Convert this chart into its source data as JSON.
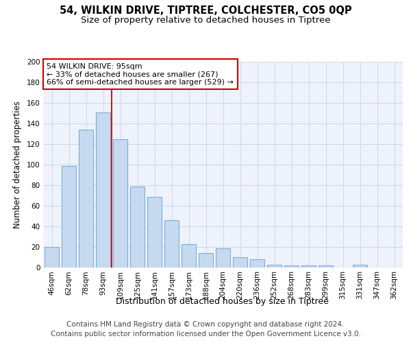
{
  "title": "54, WILKIN DRIVE, TIPTREE, COLCHESTER, CO5 0QP",
  "subtitle": "Size of property relative to detached houses in Tiptree",
  "xlabel": "Distribution of detached houses by size in Tiptree",
  "ylabel": "Number of detached properties",
  "categories": [
    "46sqm",
    "62sqm",
    "78sqm",
    "93sqm",
    "109sqm",
    "125sqm",
    "141sqm",
    "157sqm",
    "173sqm",
    "188sqm",
    "204sqm",
    "220sqm",
    "236sqm",
    "252sqm",
    "268sqm",
    "283sqm",
    "299sqm",
    "315sqm",
    "331sqm",
    "347sqm",
    "362sqm"
  ],
  "values": [
    20,
    99,
    134,
    151,
    125,
    79,
    69,
    46,
    23,
    14,
    19,
    10,
    8,
    3,
    2,
    2,
    2,
    0,
    3,
    0,
    0
  ],
  "bar_color": "#c6d9f0",
  "bar_edge_color": "#7bafd4",
  "bar_linewidth": 0.8,
  "annotation_text_line1": "54 WILKIN DRIVE: 95sqm",
  "annotation_text_line2": "← 33% of detached houses are smaller (267)",
  "annotation_text_line3": "66% of semi-detached houses are larger (529) →",
  "vline_x_index": 3.5,
  "vline_color": "#cc0000",
  "box_edge_color": "#cc0000",
  "grid_color": "#cdd8ed",
  "background_color": "#eef2fa",
  "footer_line1": "Contains HM Land Registry data © Crown copyright and database right 2024.",
  "footer_line2": "Contains public sector information licensed under the Open Government Licence v3.0.",
  "ylim": [
    0,
    200
  ],
  "yticks": [
    0,
    20,
    40,
    60,
    80,
    100,
    120,
    140,
    160,
    180,
    200
  ],
  "title_fontsize": 10.5,
  "subtitle_fontsize": 9.5,
  "xlabel_fontsize": 9,
  "ylabel_fontsize": 8.5,
  "tick_fontsize": 7.5,
  "annotation_fontsize": 8,
  "footer_fontsize": 7.5
}
